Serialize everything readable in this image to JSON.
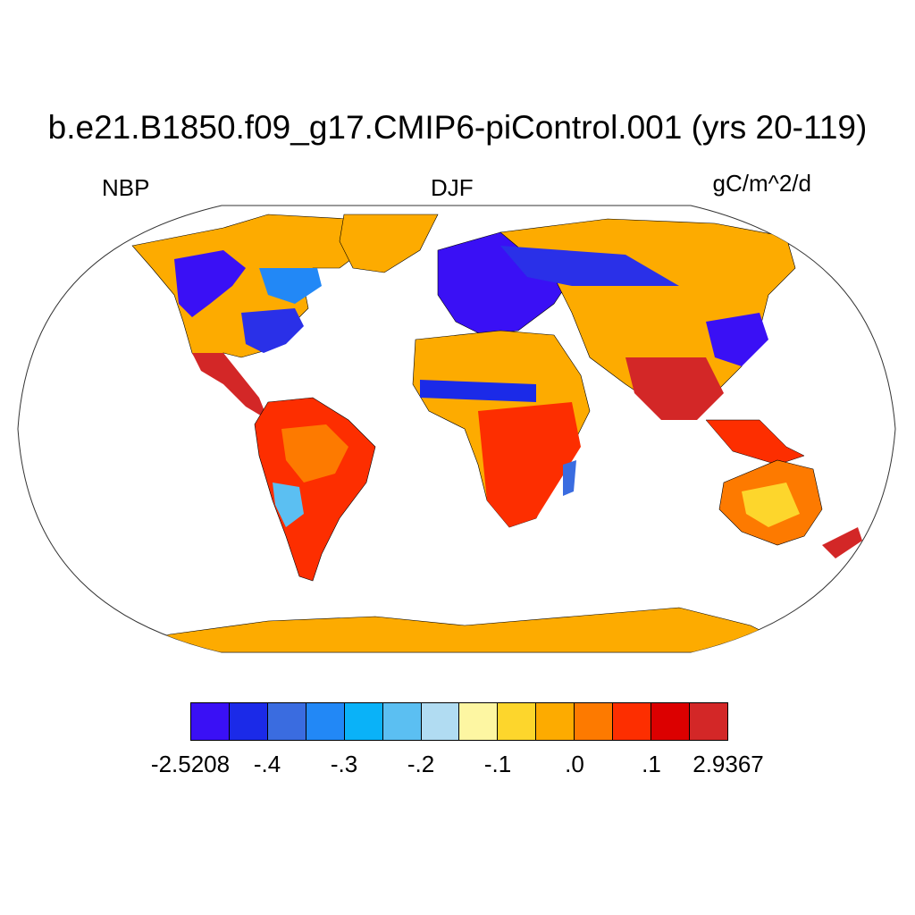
{
  "title": "b.e21.B1850.f09_g17.CMIP6-piControl.001 (yrs 20-119)",
  "left_label": "NBP",
  "center_label": "DJF",
  "right_label": "gC/m^2/d",
  "colorbar": {
    "colors": [
      "#3a10f5",
      "#1b2ae8",
      "#3a6ce0",
      "#2288f6",
      "#0ab2f8",
      "#5bbff2",
      "#b1dcf2",
      "#fdf6a2",
      "#fdd62c",
      "#fdab00",
      "#fd7a00",
      "#fd2e00",
      "#dc0000",
      "#d32727"
    ],
    "labels": [
      "-2.5208",
      "-.4",
      "-.3",
      "-.2",
      "-.1",
      ".0",
      ".1",
      "2.9367"
    ]
  },
  "map": {
    "projection": "Robinson",
    "ocean_color": "#ffffff",
    "antarctica_color": "#fdab00",
    "greenland_color": "#fdab00"
  }
}
